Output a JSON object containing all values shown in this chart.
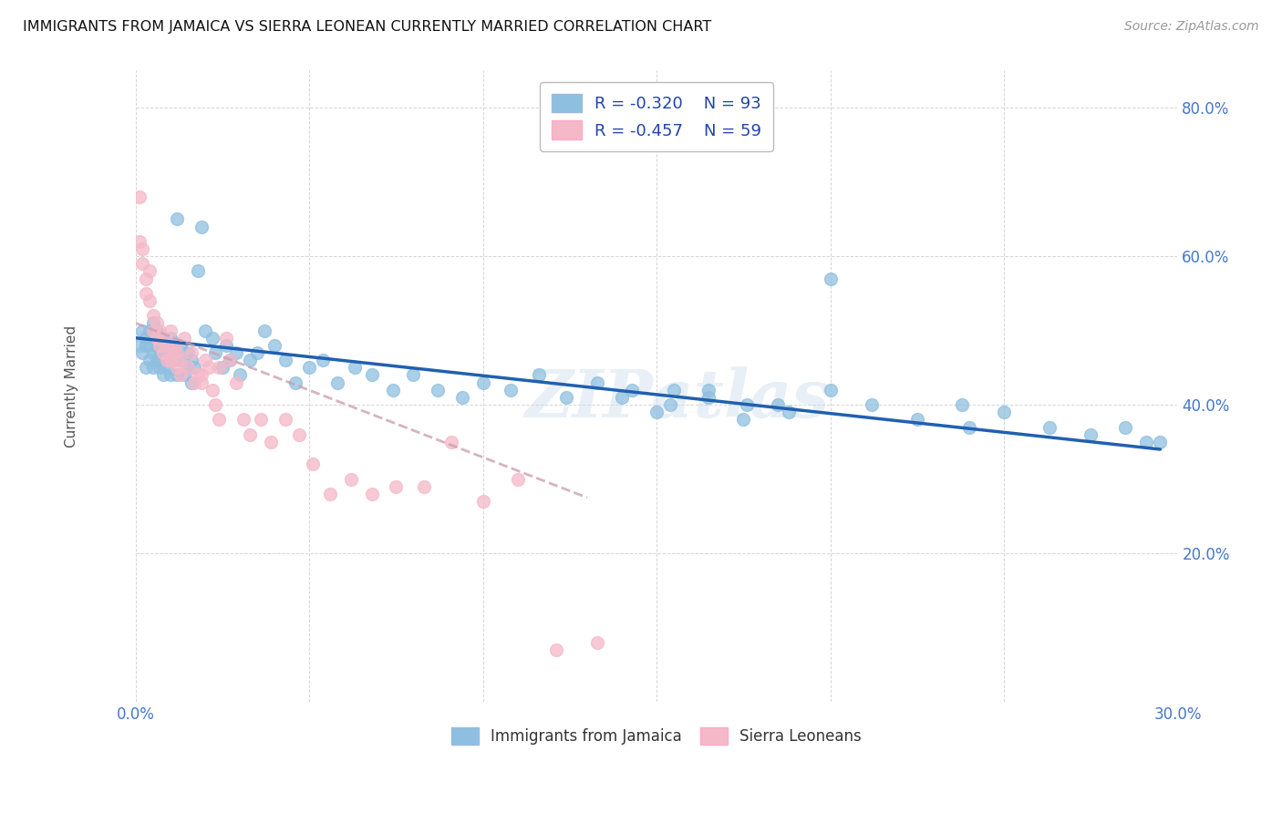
{
  "title": "IMMIGRANTS FROM JAMAICA VS SIERRA LEONEAN CURRENTLY MARRIED CORRELATION CHART",
  "source": "Source: ZipAtlas.com",
  "ylabel": "Currently Married",
  "xlim": [
    0.0,
    0.3
  ],
  "ylim": [
    0.0,
    0.85
  ],
  "ytick_values": [
    0.2,
    0.4,
    0.6,
    0.8
  ],
  "xtick_values": [
    0.0,
    0.3
  ],
  "color_jamaica": "#8FBFE0",
  "color_sierra": "#F5B8C8",
  "color_jamaica_line": "#2060B0",
  "color_sierra_line_dashed": "#CCA0B0",
  "watermark": "ZIPatlas",
  "jamaica_regression_x0": 0.0,
  "jamaica_regression_y0": 0.49,
  "jamaica_regression_x1": 0.295,
  "jamaica_regression_y1": 0.34,
  "sierra_regression_x0": 0.0,
  "sierra_regression_y0": 0.51,
  "sierra_regression_x1": 0.13,
  "sierra_regression_y1": 0.275,
  "jamaica_x": [
    0.001,
    0.002,
    0.002,
    0.003,
    0.003,
    0.003,
    0.004,
    0.004,
    0.004,
    0.005,
    0.005,
    0.005,
    0.005,
    0.006,
    0.006,
    0.006,
    0.007,
    0.007,
    0.007,
    0.007,
    0.008,
    0.008,
    0.008,
    0.009,
    0.009,
    0.01,
    0.01,
    0.01,
    0.011,
    0.011,
    0.012,
    0.012,
    0.013,
    0.013,
    0.014,
    0.015,
    0.015,
    0.016,
    0.016,
    0.017,
    0.018,
    0.019,
    0.02,
    0.022,
    0.023,
    0.025,
    0.026,
    0.027,
    0.029,
    0.03,
    0.033,
    0.035,
    0.037,
    0.04,
    0.043,
    0.046,
    0.05,
    0.054,
    0.058,
    0.063,
    0.068,
    0.074,
    0.08,
    0.087,
    0.094,
    0.1,
    0.108,
    0.116,
    0.124,
    0.133,
    0.143,
    0.154,
    0.165,
    0.176,
    0.188,
    0.2,
    0.212,
    0.225,
    0.238,
    0.25,
    0.263,
    0.275,
    0.285,
    0.291,
    0.295,
    0.2,
    0.155,
    0.175,
    0.185,
    0.24,
    0.165,
    0.15,
    0.14
  ],
  "jamaica_y": [
    0.48,
    0.5,
    0.47,
    0.48,
    0.45,
    0.49,
    0.46,
    0.48,
    0.5,
    0.47,
    0.49,
    0.45,
    0.51,
    0.46,
    0.48,
    0.5,
    0.45,
    0.47,
    0.49,
    0.46,
    0.44,
    0.47,
    0.49,
    0.45,
    0.48,
    0.46,
    0.49,
    0.44,
    0.47,
    0.46,
    0.65,
    0.44,
    0.48,
    0.46,
    0.44,
    0.47,
    0.45,
    0.43,
    0.46,
    0.45,
    0.58,
    0.64,
    0.5,
    0.49,
    0.47,
    0.45,
    0.48,
    0.46,
    0.47,
    0.44,
    0.46,
    0.47,
    0.5,
    0.48,
    0.46,
    0.43,
    0.45,
    0.46,
    0.43,
    0.45,
    0.44,
    0.42,
    0.44,
    0.42,
    0.41,
    0.43,
    0.42,
    0.44,
    0.41,
    0.43,
    0.42,
    0.4,
    0.42,
    0.4,
    0.39,
    0.42,
    0.4,
    0.38,
    0.4,
    0.39,
    0.37,
    0.36,
    0.37,
    0.35,
    0.35,
    0.57,
    0.42,
    0.38,
    0.4,
    0.37,
    0.41,
    0.39,
    0.41
  ],
  "sierra_x": [
    0.001,
    0.001,
    0.002,
    0.002,
    0.003,
    0.003,
    0.004,
    0.004,
    0.005,
    0.005,
    0.006,
    0.006,
    0.007,
    0.007,
    0.008,
    0.008,
    0.009,
    0.009,
    0.01,
    0.01,
    0.011,
    0.011,
    0.012,
    0.012,
    0.013,
    0.013,
    0.014,
    0.015,
    0.016,
    0.017,
    0.018,
    0.019,
    0.02,
    0.021,
    0.022,
    0.023,
    0.024,
    0.026,
    0.027,
    0.029,
    0.031,
    0.033,
    0.036,
    0.039,
    0.043,
    0.047,
    0.051,
    0.056,
    0.062,
    0.068,
    0.075,
    0.083,
    0.091,
    0.1,
    0.11,
    0.121,
    0.133,
    0.024,
    0.019
  ],
  "sierra_y": [
    0.68,
    0.62,
    0.61,
    0.59,
    0.57,
    0.55,
    0.58,
    0.54,
    0.52,
    0.5,
    0.49,
    0.51,
    0.5,
    0.48,
    0.47,
    0.49,
    0.46,
    0.48,
    0.5,
    0.46,
    0.47,
    0.48,
    0.45,
    0.47,
    0.44,
    0.46,
    0.49,
    0.45,
    0.47,
    0.43,
    0.44,
    0.43,
    0.46,
    0.45,
    0.42,
    0.4,
    0.38,
    0.49,
    0.46,
    0.43,
    0.38,
    0.36,
    0.38,
    0.35,
    0.38,
    0.36,
    0.32,
    0.28,
    0.3,
    0.28,
    0.29,
    0.29,
    0.35,
    0.27,
    0.3,
    0.07,
    0.08,
    0.45,
    0.44
  ]
}
